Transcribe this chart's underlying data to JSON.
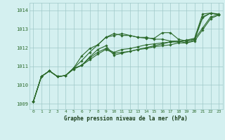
{
  "xlabel": "Graphe pression niveau de la mer (hPa)",
  "bg_color": "#d4f0f0",
  "grid_color": "#a0c8c8",
  "line_color": "#2d6b2d",
  "xlim": [
    -0.5,
    23.5
  ],
  "ylim": [
    1008.7,
    1014.4
  ],
  "yticks": [
    1009,
    1010,
    1011,
    1012,
    1013,
    1014
  ],
  "xticks": [
    0,
    1,
    2,
    3,
    4,
    5,
    6,
    7,
    8,
    9,
    10,
    11,
    12,
    13,
    14,
    15,
    16,
    17,
    18,
    19,
    20,
    21,
    22,
    23
  ],
  "series": [
    [
      1009.1,
      1010.45,
      1010.75,
      1010.45,
      1010.5,
      1010.9,
      1011.05,
      1011.5,
      1011.9,
      1012.1,
      1011.6,
      1011.7,
      1011.8,
      1011.9,
      1012.0,
      1012.1,
      1012.2,
      1012.3,
      1012.3,
      1012.4,
      1012.5,
      1013.8,
      1013.85,
      1013.75
    ],
    [
      1009.1,
      1010.45,
      1010.75,
      1010.45,
      1010.5,
      1010.9,
      1011.3,
      1011.75,
      1012.15,
      1012.55,
      1012.65,
      1012.75,
      1012.65,
      1012.55,
      1012.5,
      1012.5,
      1012.8,
      1012.8,
      1012.45,
      1012.35,
      1012.45,
      1013.65,
      1013.85,
      1013.8
    ],
    [
      1009.1,
      1010.45,
      1010.75,
      1010.45,
      1010.5,
      1010.9,
      1011.55,
      1011.95,
      1012.15,
      1012.55,
      1012.75,
      1012.65,
      1012.65,
      1012.55,
      1012.55,
      1012.45,
      1012.45,
      1012.35,
      1012.35,
      1012.25,
      1012.4,
      1013.6,
      1013.85,
      1013.75
    ],
    [
      1009.1,
      1010.45,
      1010.75,
      1010.45,
      1010.5,
      1010.85,
      1011.05,
      1011.45,
      1011.75,
      1011.95,
      1011.75,
      1011.9,
      1011.95,
      1012.05,
      1012.15,
      1012.2,
      1012.25,
      1012.3,
      1012.35,
      1012.35,
      1012.45,
      1013.05,
      1013.65,
      1013.75
    ],
    [
      1009.1,
      1010.45,
      1010.75,
      1010.45,
      1010.5,
      1010.85,
      1011.05,
      1011.35,
      1011.65,
      1011.9,
      1011.7,
      1011.75,
      1011.8,
      1011.9,
      1011.95,
      1012.05,
      1012.1,
      1012.15,
      1012.25,
      1012.25,
      1012.35,
      1012.95,
      1013.55,
      1013.75
    ]
  ]
}
